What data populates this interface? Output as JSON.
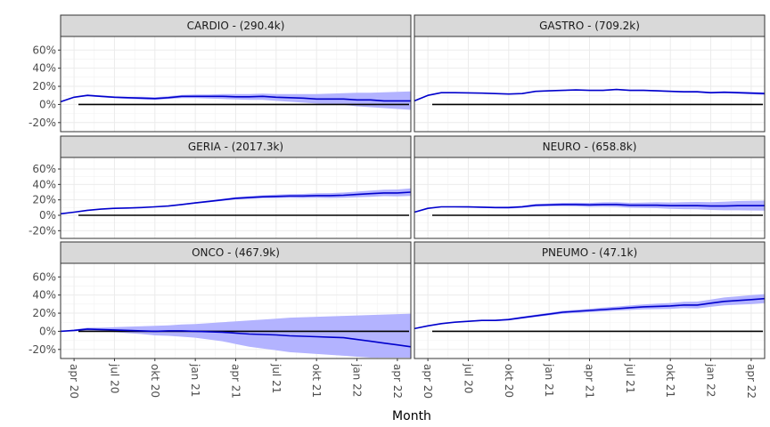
{
  "chart_data": {
    "type": "line",
    "xlabel": "Month",
    "ylabel": "",
    "ylim": [
      -0.3,
      0.75
    ],
    "y_ticks": [
      -0.2,
      0,
      0.2,
      0.4,
      0.6
    ],
    "y_tick_labels": [
      "-20%",
      "0%",
      "20%",
      "40%",
      "60%"
    ],
    "x_start": "2020-03",
    "x_end": "2022-05",
    "x_ticks": [
      "2020-04",
      "2020-07",
      "2020-10",
      "2021-01",
      "2021-04",
      "2021-07",
      "2021-10",
      "2022-01",
      "2022-04"
    ],
    "x_tick_labels": [
      "apr 20",
      "jul 20",
      "okt 20",
      "jan 21",
      "apr 21",
      "jul 21",
      "okt 21",
      "jan 22",
      "apr 22"
    ],
    "months": [
      "2020-03",
      "2020-04",
      "2020-05",
      "2020-06",
      "2020-07",
      "2020-08",
      "2020-09",
      "2020-10",
      "2020-11",
      "2020-12",
      "2021-01",
      "2021-02",
      "2021-03",
      "2021-04",
      "2021-05",
      "2021-06",
      "2021-07",
      "2021-08",
      "2021-09",
      "2021-10",
      "2021-11",
      "2021-12",
      "2022-01",
      "2022-02",
      "2022-03",
      "2022-04",
      "2022-05"
    ],
    "reference_line": 0,
    "grid": true,
    "line_color": "#0000cc",
    "band_color": "#b3b3ff",
    "panels": [
      {
        "title": "CARDIO -  (290.4k)",
        "values": [
          0.03,
          0.08,
          0.1,
          0.09,
          0.08,
          0.075,
          0.07,
          0.065,
          0.075,
          0.09,
          0.09,
          0.09,
          0.09,
          0.085,
          0.085,
          0.09,
          0.08,
          0.075,
          0.07,
          0.06,
          0.06,
          0.06,
          0.05,
          0.05,
          0.04,
          0.04,
          0.04
        ],
        "lower": [
          0.03,
          0.075,
          0.09,
          0.08,
          0.07,
          0.06,
          0.055,
          0.05,
          0.06,
          0.07,
          0.07,
          0.065,
          0.06,
          0.055,
          0.05,
          0.05,
          0.04,
          0.03,
          0.02,
          0.01,
          0.005,
          -0.005,
          -0.02,
          -0.03,
          -0.04,
          -0.05,
          -0.06
        ],
        "upper": [
          0.03,
          0.085,
          0.11,
          0.1,
          0.09,
          0.085,
          0.085,
          0.08,
          0.09,
          0.105,
          0.11,
          0.11,
          0.115,
          0.115,
          0.115,
          0.12,
          0.115,
          0.115,
          0.115,
          0.115,
          0.12,
          0.125,
          0.13,
          0.13,
          0.135,
          0.14,
          0.145
        ]
      },
      {
        "title": "GASTRO -  (709.2k)",
        "values": [
          0.04,
          0.1,
          0.13,
          0.13,
          0.128,
          0.125,
          0.12,
          0.115,
          0.12,
          0.145,
          0.15,
          0.155,
          0.16,
          0.155,
          0.155,
          0.165,
          0.155,
          0.155,
          0.15,
          0.145,
          0.14,
          0.14,
          0.13,
          0.135,
          0.13,
          0.125,
          0.12
        ],
        "lower": [
          0.04,
          0.095,
          0.125,
          0.125,
          0.123,
          0.12,
          0.115,
          0.11,
          0.115,
          0.14,
          0.145,
          0.15,
          0.155,
          0.15,
          0.15,
          0.158,
          0.148,
          0.147,
          0.142,
          0.137,
          0.131,
          0.13,
          0.12,
          0.124,
          0.118,
          0.112,
          0.106
        ],
        "upper": [
          0.04,
          0.105,
          0.135,
          0.135,
          0.133,
          0.13,
          0.125,
          0.12,
          0.125,
          0.15,
          0.155,
          0.16,
          0.165,
          0.16,
          0.16,
          0.172,
          0.162,
          0.163,
          0.158,
          0.153,
          0.149,
          0.15,
          0.14,
          0.146,
          0.142,
          0.138,
          0.134
        ]
      },
      {
        "title": "GERIA -  (2017.3k)",
        "values": [
          0.02,
          0.04,
          0.065,
          0.08,
          0.09,
          0.095,
          0.1,
          0.11,
          0.12,
          0.14,
          0.16,
          0.18,
          0.2,
          0.22,
          0.23,
          0.24,
          0.245,
          0.25,
          0.25,
          0.255,
          0.255,
          0.26,
          0.27,
          0.28,
          0.29,
          0.29,
          0.3
        ],
        "lower": [
          0.02,
          0.038,
          0.062,
          0.077,
          0.086,
          0.09,
          0.094,
          0.104,
          0.112,
          0.131,
          0.15,
          0.168,
          0.186,
          0.204,
          0.212,
          0.22,
          0.222,
          0.225,
          0.223,
          0.225,
          0.223,
          0.226,
          0.233,
          0.24,
          0.248,
          0.245,
          0.252
        ],
        "upper": [
          0.02,
          0.042,
          0.068,
          0.083,
          0.094,
          0.1,
          0.106,
          0.116,
          0.128,
          0.149,
          0.17,
          0.192,
          0.214,
          0.236,
          0.248,
          0.26,
          0.268,
          0.275,
          0.277,
          0.285,
          0.287,
          0.294,
          0.307,
          0.32,
          0.332,
          0.335,
          0.348
        ]
      },
      {
        "title": "NEURO -  (658.8k)",
        "values": [
          0.04,
          0.09,
          0.11,
          0.11,
          0.108,
          0.105,
          0.1,
          0.1,
          0.11,
          0.13,
          0.135,
          0.14,
          0.14,
          0.135,
          0.14,
          0.14,
          0.13,
          0.13,
          0.13,
          0.125,
          0.125,
          0.125,
          0.12,
          0.12,
          0.125,
          0.125,
          0.125
        ],
        "lower": [
          0.04,
          0.085,
          0.105,
          0.104,
          0.1,
          0.095,
          0.089,
          0.087,
          0.095,
          0.113,
          0.116,
          0.119,
          0.117,
          0.11,
          0.112,
          0.11,
          0.098,
          0.095,
          0.092,
          0.084,
          0.08,
          0.077,
          0.069,
          0.065,
          0.065,
          0.062,
          0.06
        ],
        "upper": [
          0.04,
          0.095,
          0.115,
          0.116,
          0.116,
          0.115,
          0.111,
          0.113,
          0.125,
          0.147,
          0.154,
          0.161,
          0.163,
          0.16,
          0.168,
          0.17,
          0.162,
          0.165,
          0.168,
          0.166,
          0.17,
          0.173,
          0.171,
          0.175,
          0.185,
          0.188,
          0.19
        ]
      },
      {
        "title": "ONCO -  (467.9k)",
        "values": [
          0.0,
          0.01,
          0.025,
          0.02,
          0.015,
          0.01,
          0.005,
          0.0,
          0.005,
          0.005,
          0.0,
          -0.005,
          -0.01,
          -0.02,
          -0.03,
          -0.035,
          -0.04,
          -0.05,
          -0.055,
          -0.06,
          -0.065,
          -0.07,
          -0.09,
          -0.11,
          -0.13,
          -0.15,
          -0.17
        ],
        "lower": [
          0.0,
          0.0,
          0.01,
          0.0,
          -0.01,
          -0.02,
          -0.03,
          -0.045,
          -0.05,
          -0.06,
          -0.07,
          -0.09,
          -0.11,
          -0.14,
          -0.17,
          -0.19,
          -0.21,
          -0.23,
          -0.24,
          -0.25,
          -0.26,
          -0.27,
          -0.28,
          -0.29,
          -0.29,
          -0.29,
          -0.29
        ],
        "upper": [
          0.0,
          0.02,
          0.04,
          0.04,
          0.045,
          0.05,
          0.055,
          0.06,
          0.065,
          0.075,
          0.08,
          0.09,
          0.1,
          0.11,
          0.12,
          0.13,
          0.14,
          0.15,
          0.155,
          0.16,
          0.165,
          0.17,
          0.175,
          0.18,
          0.185,
          0.19,
          0.195
        ]
      },
      {
        "title": "PNEUMO -  (47.1k)",
        "values": [
          0.03,
          0.06,
          0.085,
          0.1,
          0.11,
          0.12,
          0.12,
          0.13,
          0.15,
          0.17,
          0.19,
          0.21,
          0.22,
          0.23,
          0.24,
          0.25,
          0.26,
          0.27,
          0.275,
          0.28,
          0.29,
          0.29,
          0.31,
          0.33,
          0.34,
          0.35,
          0.36
        ],
        "lower": [
          0.03,
          0.057,
          0.081,
          0.096,
          0.104,
          0.113,
          0.112,
          0.12,
          0.138,
          0.157,
          0.176,
          0.194,
          0.203,
          0.211,
          0.219,
          0.227,
          0.235,
          0.243,
          0.245,
          0.248,
          0.255,
          0.252,
          0.27,
          0.287,
          0.294,
          0.3,
          0.31
        ],
        "upper": [
          0.03,
          0.063,
          0.089,
          0.104,
          0.116,
          0.127,
          0.128,
          0.14,
          0.162,
          0.183,
          0.204,
          0.226,
          0.237,
          0.249,
          0.261,
          0.273,
          0.285,
          0.297,
          0.305,
          0.312,
          0.325,
          0.328,
          0.35,
          0.373,
          0.386,
          0.4,
          0.41
        ]
      }
    ]
  }
}
